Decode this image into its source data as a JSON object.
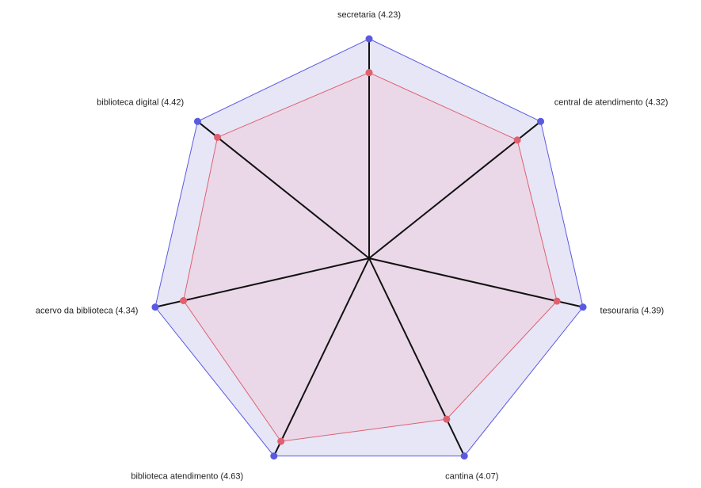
{
  "chart_data": {
    "type": "radar",
    "categories": [
      "secretaria (4.23)",
      "central de atendimento (4.32)",
      "tesouraria (4.39)",
      "cantina (4.07)",
      "biblioteca atendimento (4.63)",
      "acervo da biblioteca (4.34)",
      "biblioteca digital (4.42)"
    ],
    "values": [
      4.23,
      4.32,
      4.39,
      4.07,
      4.63,
      4.34,
      4.42
    ],
    "color": "#e0606e",
    "rlim": [
      0,
      5
    ],
    "frame_color": "#5a5ae0"
  }
}
